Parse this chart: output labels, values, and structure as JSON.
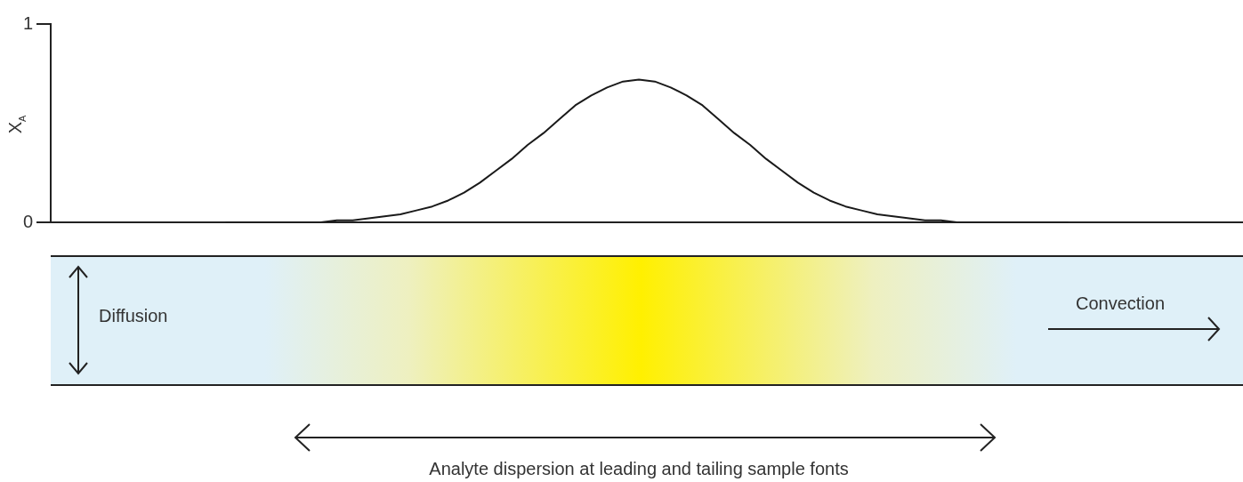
{
  "chart_data": {
    "type": "line",
    "ylabel": "X$_{A}$",
    "categories": [
      null,
      null,
      null,
      null,
      null,
      null,
      null,
      null,
      null,
      null,
      null,
      null,
      null,
      null,
      null,
      null,
      null,
      null,
      null,
      null,
      null,
      null,
      null,
      null,
      null,
      null,
      null,
      null,
      null,
      null,
      null,
      null,
      null,
      null,
      null,
      null,
      null,
      null,
      null,
      null,
      null,
      null,
      null,
      null,
      null,
      null,
      null,
      null,
      null,
      null,
      null,
      null,
      null,
      null,
      null,
      null,
      null,
      null,
      null,
      null,
      null,
      null,
      null,
      null,
      null,
      null,
      null,
      null,
      null,
      null,
      null,
      null,
      null,
      null,
      null,
      null
    ],
    "series": [
      {
        "color": "#1a1a1a",
        "values": [
          null,
          null,
          null,
          null,
          null,
          null,
          null,
          null,
          null,
          null,
          null,
          0,
          0,
          0,
          0,
          0,
          0,
          0,
          0.01,
          0.01,
          0.02,
          0.03,
          0.04,
          0.06,
          0.08,
          0.11,
          0.15,
          0.2,
          0.26,
          0.32,
          0.39,
          0.45,
          0.52,
          0.59,
          0.64,
          0.68,
          0.71,
          0.72,
          0.71,
          0.68,
          0.64,
          0.59,
          0.52,
          0.45,
          0.39,
          0.32,
          0.26,
          0.2,
          0.15,
          0.11,
          0.08,
          0.06,
          0.04,
          0.03,
          0.02,
          0.01,
          0.01,
          0,
          0,
          0,
          0,
          0,
          0,
          0,
          0,
          null,
          null,
          null,
          null,
          null,
          null,
          null,
          null,
          null,
          null,
          null
        ]
      }
    ],
    "ylim": [
      0,
      1
    ],
    "yticks": [
      0,
      1
    ],
    "grid": false,
    "legend": false,
    "marker": "none",
    "line_style": "solid",
    "annotations": [
      "Diffusion",
      "Convection",
      "Analyte dispersion at leading and tailing sample fonts"
    ]
  }
}
